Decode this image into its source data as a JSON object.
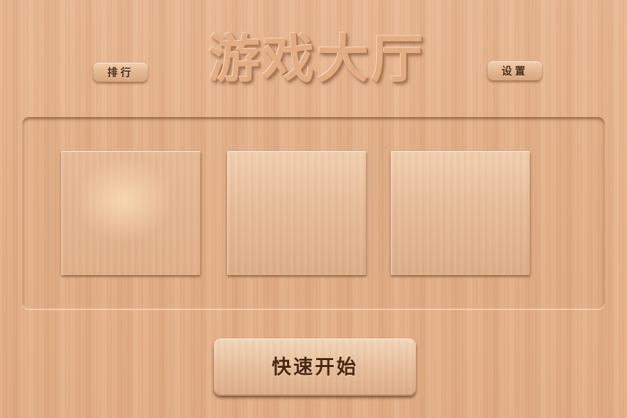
{
  "header": {
    "title": "游戏大厅",
    "rank_label": "排行",
    "settings_label": "设置"
  },
  "lobby": {
    "slots": [
      {
        "label": ""
      },
      {
        "label": ""
      },
      {
        "label": ""
      }
    ]
  },
  "footer": {
    "quick_start_label": "快速开始"
  },
  "colors": {
    "wood_background": "#e6b48d",
    "text_dark": "#4a2a12"
  }
}
